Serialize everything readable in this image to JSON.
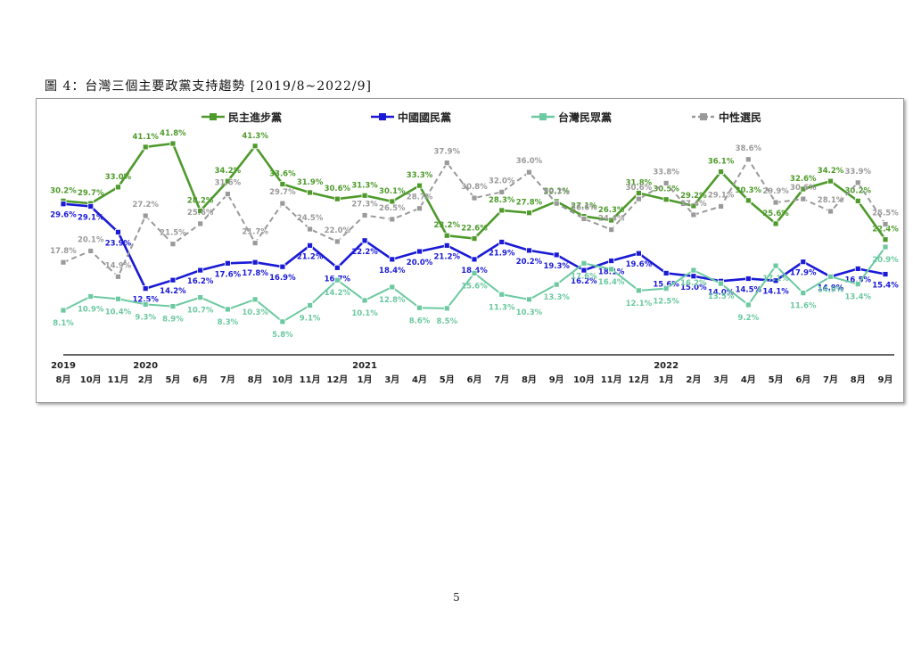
{
  "page": {
    "caption": "圖 4：台灣三個主要政黨支持趨勢 [2019/8~2022/9]",
    "page_number": "5"
  },
  "colors": {
    "dpp": "#4e9a2b",
    "kmt": "#1a1ad6",
    "tpp": "#6cc9a1",
    "neutral": "#9a9a9a"
  },
  "chart_data": {
    "type": "line",
    "title": "",
    "xlabel": "",
    "ylabel": "",
    "legend_position": "top",
    "grid": false,
    "ylim": [
      0,
      48
    ],
    "categories": [
      "8月",
      "10月",
      "11月",
      "2月",
      "5月",
      "6月",
      "7月",
      "8月",
      "10月",
      "11月",
      "12月",
      "1月",
      "3月",
      "4月",
      "5月",
      "6月",
      "7月",
      "8月",
      "9月",
      "10月",
      "11月",
      "12月",
      "1月",
      "2月",
      "3月",
      "4月",
      "5月",
      "6月",
      "7月",
      "8月",
      "9月"
    ],
    "year_labels": [
      {
        "index": 0,
        "label": "2019"
      },
      {
        "index": 3,
        "label": "2020"
      },
      {
        "index": 11,
        "label": "2021"
      },
      {
        "index": 22,
        "label": "2022"
      }
    ],
    "series": [
      {
        "name": "民主進步黨",
        "key": "dpp",
        "dashed": false,
        "values": [
          30.2,
          29.7,
          33.0,
          41.1,
          41.8,
          28.2,
          34.2,
          41.3,
          33.6,
          31.9,
          30.6,
          31.3,
          30.1,
          33.3,
          23.2,
          22.6,
          28.3,
          27.8,
          30.1,
          27.1,
          26.3,
          31.8,
          30.5,
          29.2,
          36.1,
          30.3,
          25.6,
          32.6,
          34.2,
          30.2,
          22.4
        ]
      },
      {
        "name": "中國國民黨",
        "key": "kmt",
        "dashed": false,
        "values": [
          29.6,
          29.1,
          23.9,
          12.5,
          14.2,
          16.2,
          17.6,
          17.8,
          16.9,
          21.2,
          16.7,
          22.2,
          18.4,
          20.0,
          21.2,
          18.4,
          21.9,
          20.2,
          19.3,
          16.2,
          18.1,
          19.6,
          15.6,
          15.0,
          14.0,
          14.5,
          14.1,
          17.9,
          14.9,
          16.5,
          15.4
        ]
      },
      {
        "name": "台灣民眾黨",
        "key": "tpp",
        "dashed": false,
        "values": [
          8.1,
          10.9,
          10.4,
          9.3,
          8.9,
          10.7,
          8.3,
          10.3,
          5.8,
          9.1,
          14.2,
          10.1,
          12.8,
          8.6,
          8.5,
          15.6,
          11.3,
          10.3,
          13.3,
          17.6,
          16.4,
          12.1,
          12.5,
          16.2,
          13.5,
          9.2,
          17.1,
          11.6,
          14.9,
          13.4,
          20.9
        ]
      },
      {
        "name": "中性選民",
        "key": "neutral",
        "dashed": true,
        "values": [
          17.8,
          20.1,
          14.9,
          27.2,
          21.5,
          25.6,
          31.6,
          21.7,
          29.7,
          24.5,
          22.0,
          27.3,
          26.5,
          28.7,
          37.9,
          30.8,
          32.0,
          36.0,
          29.7,
          26.6,
          24.4,
          30.6,
          33.8,
          27.4,
          29.1,
          38.6,
          29.9,
          30.6,
          28.1,
          33.9,
          25.5
        ]
      }
    ]
  }
}
